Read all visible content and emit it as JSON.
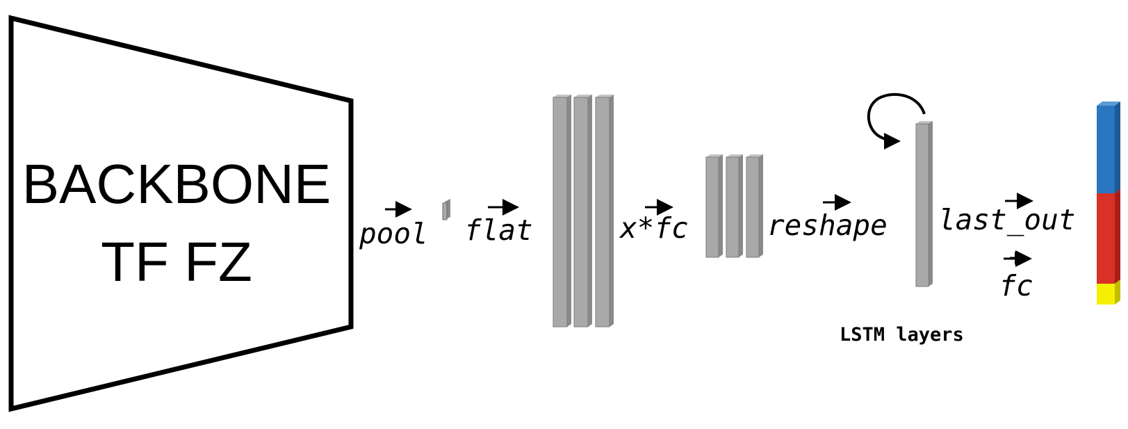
{
  "backbone": {
    "line1": "BACKBONE",
    "line2": "TF FZ"
  },
  "operations": {
    "pool": "pool",
    "flat": "flat",
    "xfc": "x*fc",
    "reshape": "reshape",
    "last_out": "last_out",
    "plus": "+",
    "fc": "fc"
  },
  "captions": {
    "lstm_layers": "LSTM layers"
  },
  "colors": {
    "layer_fill": "#a9a9a9",
    "layer_shade": "#8a8a8a",
    "output_top": "#2a76c0",
    "output_middle": "#d93028",
    "output_bottom": "#f5f000"
  },
  "icons": {
    "recurrence": "circular-arrow-icon",
    "vector_arrow": "right-arrow-icon"
  }
}
